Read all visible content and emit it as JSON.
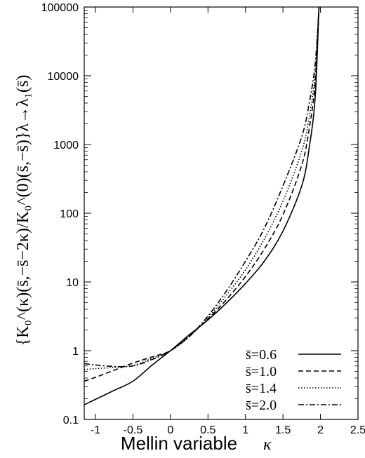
{
  "chart_data": {
    "type": "line",
    "xlabel": "Mellin variable",
    "xlabel_symbol": "κ",
    "ylabel": "{K₀^(κ)(s̄,−s̄−2κ)/K₀^(0)(s̄,−s̄)}λ→λ₁(s̄)",
    "xlim": [
      -1.15,
      2.5
    ],
    "ylim": [
      0.1,
      100000
    ],
    "yscale": "log",
    "x_ticks": [
      "-1",
      "-0.5",
      "0",
      "0.5",
      "1",
      "1.5",
      "2",
      "2.5"
    ],
    "y_ticks": [
      "0.1",
      "1",
      "10",
      "100",
      "1000",
      "10000",
      "100000"
    ],
    "grid": false,
    "legend_position": "bottom-right",
    "series": [
      {
        "name": "s̄=0.6",
        "style": "solid",
        "x": [
          -1.15,
          -1.0,
          -0.75,
          -0.5,
          -0.25,
          0.0,
          0.25,
          0.5,
          0.75,
          1.0,
          1.25,
          1.5,
          1.75,
          1.85,
          1.93,
          1.98
        ],
        "y": [
          0.163,
          0.196,
          0.265,
          0.36,
          0.61,
          1.0,
          1.7,
          2.8,
          5.0,
          9.5,
          20,
          55,
          250,
          900,
          5000,
          100000
        ]
      },
      {
        "name": "s̄=1.0",
        "style": "dashed",
        "x": [
          -1.15,
          -1.0,
          -0.75,
          -0.5,
          -0.25,
          0.0,
          0.25,
          0.5,
          0.75,
          1.0,
          1.25,
          1.5,
          1.75,
          1.85,
          1.93,
          1.98
        ],
        "y": [
          0.36,
          0.41,
          0.52,
          0.66,
          0.81,
          1.0,
          1.65,
          2.9,
          5.6,
          12,
          30,
          95,
          500,
          1700,
          8000,
          100000
        ]
      },
      {
        "name": "s̄=1.4",
        "style": "dotted",
        "x": [
          -1.15,
          -1.0,
          -0.75,
          -0.5,
          -0.25,
          0.0,
          0.25,
          0.5,
          0.75,
          1.0,
          1.25,
          1.5,
          1.75,
          1.85,
          1.93,
          1.98
        ],
        "y": [
          0.53,
          0.55,
          0.57,
          0.61,
          0.77,
          1.0,
          1.6,
          3.0,
          6.5,
          15,
          42,
          150,
          800,
          2500,
          11000,
          100000
        ]
      },
      {
        "name": "s̄=2.0",
        "style": "dashdot",
        "x": [
          -1.15,
          -1.0,
          -0.75,
          -0.5,
          -0.25,
          0.0,
          0.25,
          0.5,
          0.75,
          1.0,
          1.25,
          1.5,
          1.75,
          1.85,
          1.93,
          1.98
        ],
        "y": [
          0.65,
          0.62,
          0.59,
          0.6,
          0.74,
          1.0,
          1.6,
          3.2,
          7.5,
          20,
          60,
          250,
          1300,
          4000,
          15000,
          100000
        ]
      }
    ]
  }
}
